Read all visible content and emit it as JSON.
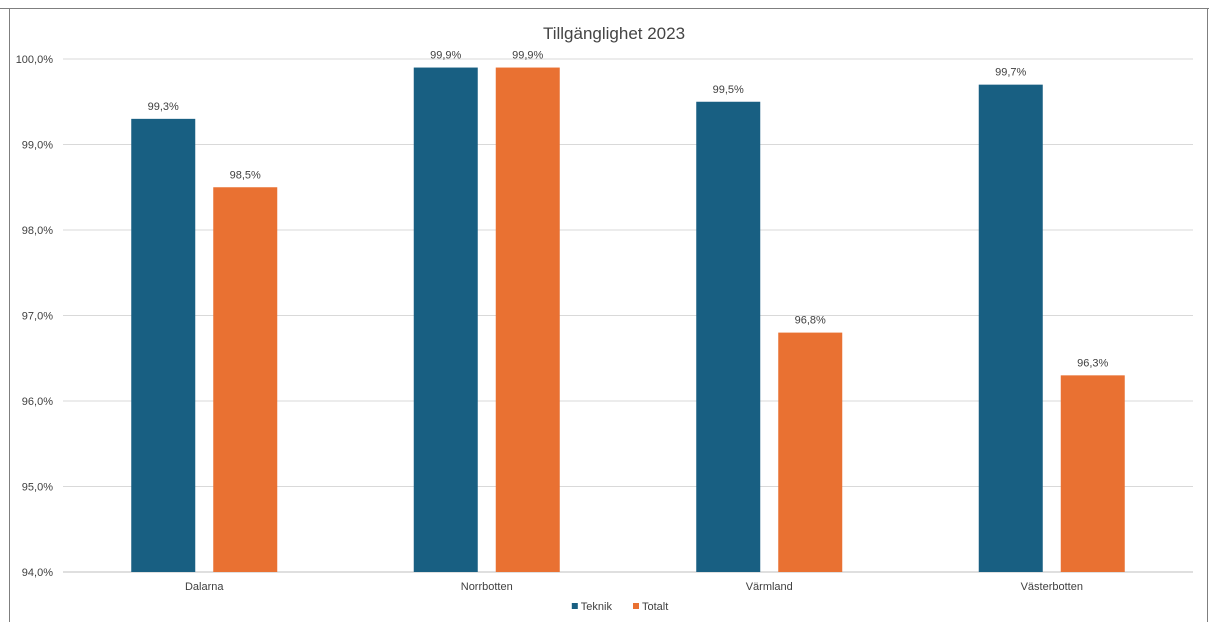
{
  "chart_data": {
    "type": "bar",
    "title": "Tillgänglighet 2023",
    "xlabel": "",
    "ylabel": "",
    "categories": [
      "Dalarna",
      "Norrbotten",
      "Värmland",
      "Västerbotten"
    ],
    "series": [
      {
        "name": "Teknik",
        "color": "#185f82",
        "values": [
          99.3,
          99.9,
          99.5,
          99.7
        ],
        "labels": [
          "99,3%",
          "99,9%",
          "99,5%",
          "99,7%"
        ]
      },
      {
        "name": "Totalt",
        "color": "#e97132",
        "values": [
          98.5,
          99.9,
          96.8,
          96.3
        ],
        "labels": [
          "98,5%",
          "99,9%",
          "96,8%",
          "96,3%"
        ]
      }
    ],
    "ylim": [
      94.0,
      100.0
    ],
    "yticks": [
      94.0,
      95.0,
      96.0,
      97.0,
      98.0,
      99.0,
      100.0
    ],
    "ytick_labels": [
      "94,0%",
      "95,0%",
      "96,0%",
      "97,0%",
      "98,0%",
      "99,0%",
      "100,0%"
    ],
    "grid": true,
    "legend_position": "bottom"
  }
}
